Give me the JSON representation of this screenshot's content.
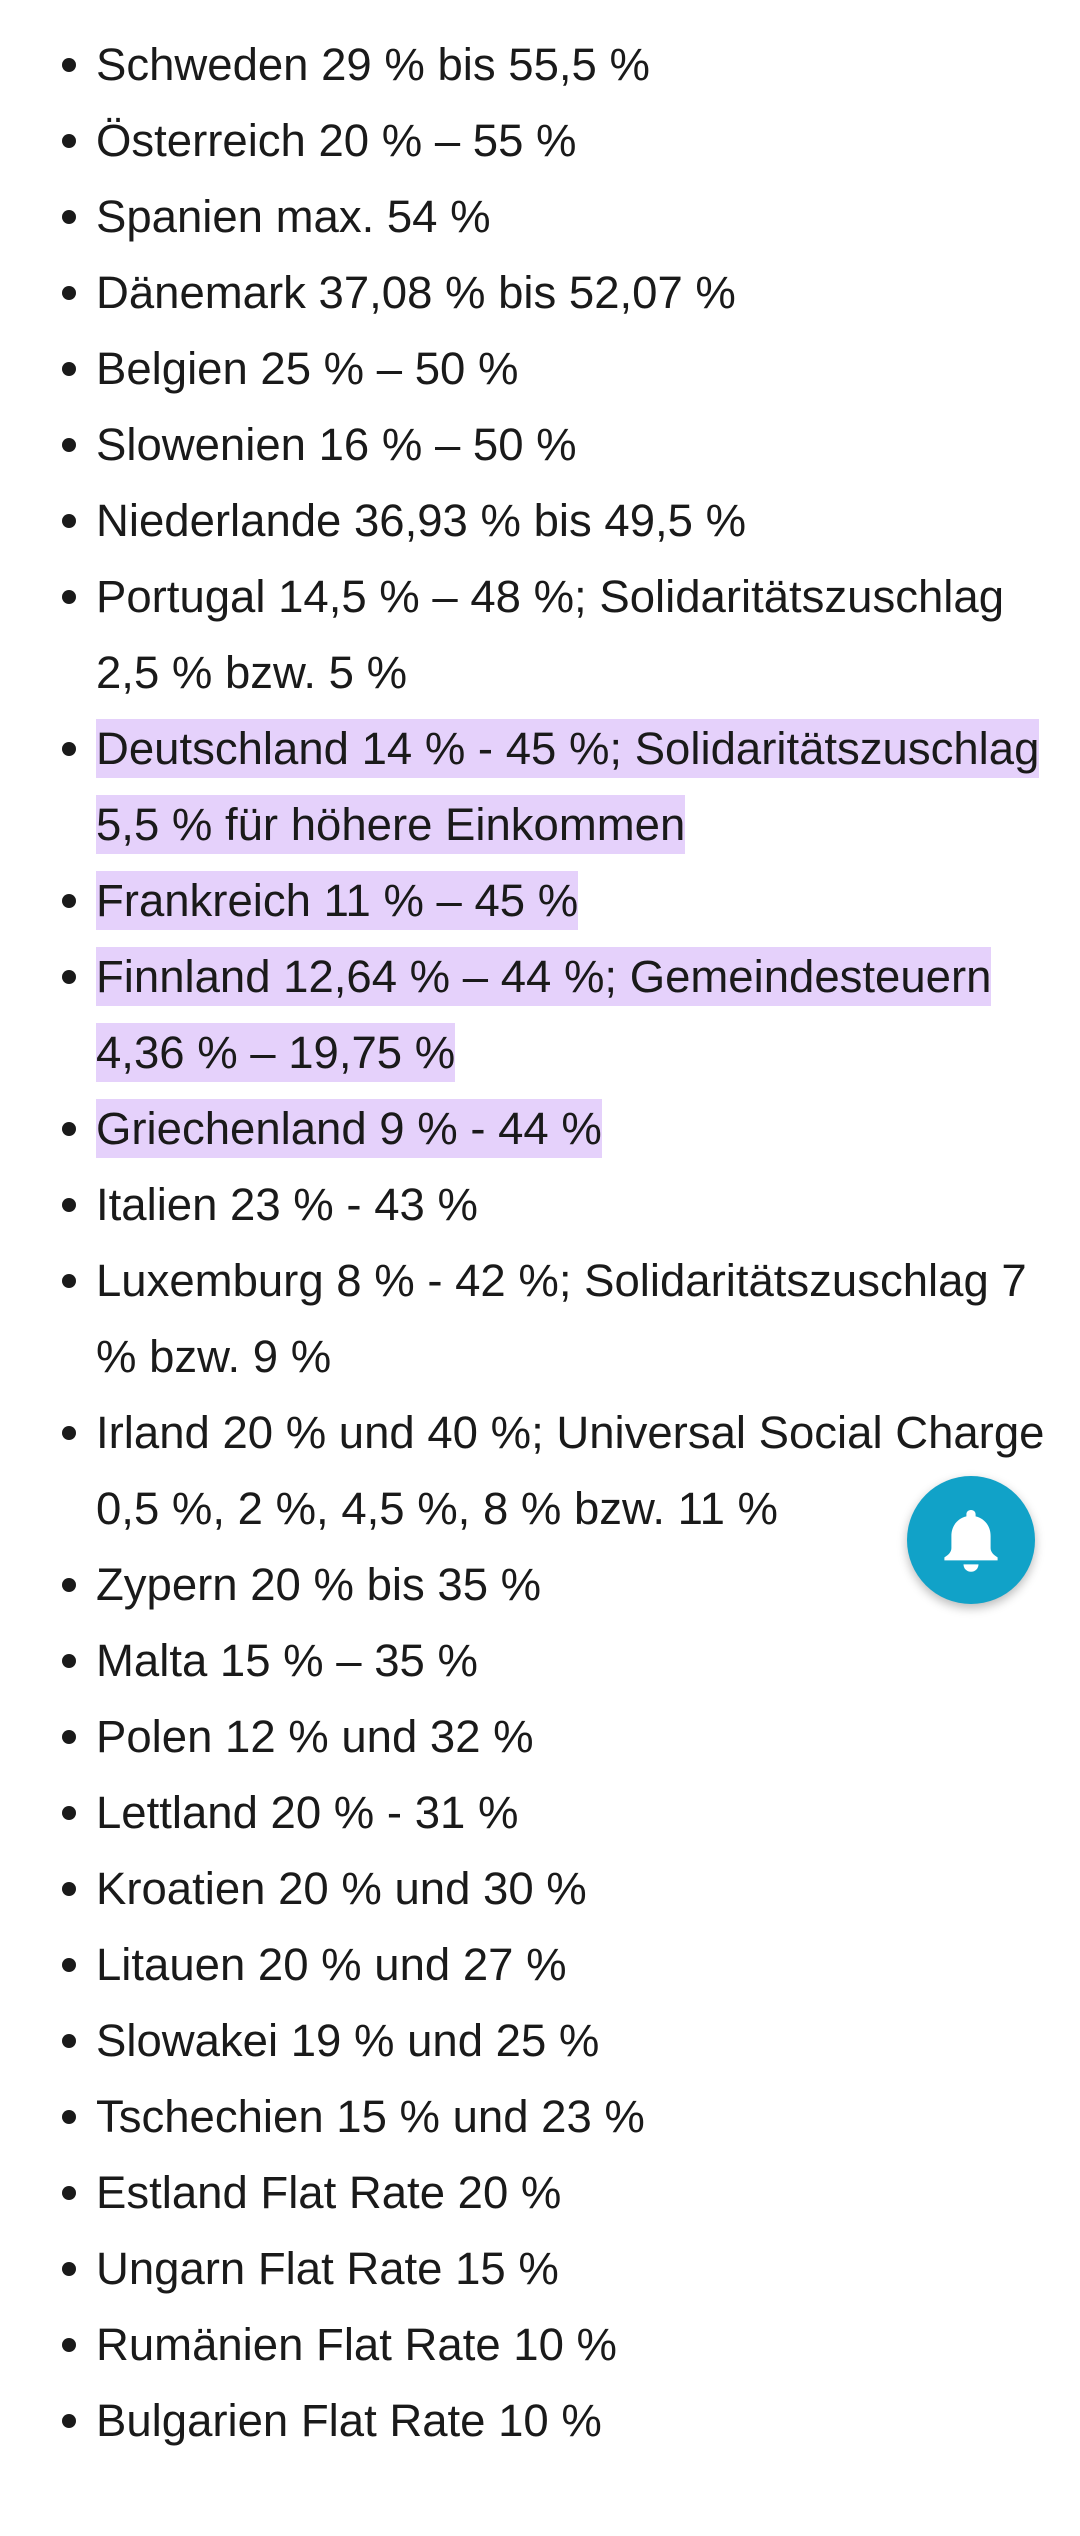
{
  "items": [
    {
      "text": "Schweden 29 % bis 55,5 %",
      "highlighted": false
    },
    {
      "text": "Österreich 20 % – 55 %",
      "highlighted": false
    },
    {
      "text": "Spanien max. 54 %",
      "highlighted": false
    },
    {
      "text": "Dänemark 37,08 % bis 52,07 %",
      "highlighted": false
    },
    {
      "text": "Belgien 25 % – 50 %",
      "highlighted": false
    },
    {
      "text": "Slowenien 16 % – 50 %",
      "highlighted": false
    },
    {
      "text": "Niederlande 36,93 % bis 49,5 %",
      "highlighted": false
    },
    {
      "text": "Portugal 14,5 % – 48 %; Solidaritätszuschlag 2,5 % bzw. 5 %",
      "highlighted": false
    },
    {
      "text": "Deutschland 14 % - 45 %; Solidaritätszuschlag 5,5 % für höhere Einkommen",
      "highlighted": true
    },
    {
      "text": "Frankreich 11 % – 45 %",
      "highlighted": true
    },
    {
      "text": "Finnland 12,64 % – 44 %; Gemeindesteuern 4,36 % – 19,75 %",
      "highlighted": true
    },
    {
      "text": "Griechenland 9 % - 44 %",
      "highlighted": true
    },
    {
      "text": "Italien 23 % - 43 %",
      "highlighted": false
    },
    {
      "text": "Luxemburg 8 % - 42 %; Solidaritätszuschlag 7 % bzw. 9 %",
      "highlighted": false
    },
    {
      "text": "Irland 20 % und 40 %; Universal Social Charge 0,5 %, 2 %, 4,5 %, 8 % bzw. 11 %",
      "highlighted": false
    },
    {
      "text": "Zypern 20 % bis 35 %",
      "highlighted": false
    },
    {
      "text": "Malta 15 % – 35 %",
      "highlighted": false
    },
    {
      "text": "Polen 12 % und 32 %",
      "highlighted": false
    },
    {
      "text": "Lettland 20 % - 31 %",
      "highlighted": false
    },
    {
      "text": "Kroatien 20 % und 30 %",
      "highlighted": false
    },
    {
      "text": "Litauen 20 % und 27 %",
      "highlighted": false
    },
    {
      "text": "Slowakei 19 % und 25 %",
      "highlighted": false
    },
    {
      "text": "Tschechien 15 % und 23 %",
      "highlighted": false
    },
    {
      "text": "Estland Flat Rate 20 %",
      "highlighted": false
    },
    {
      "text": "Ungarn Flat Rate 15 %",
      "highlighted": false
    },
    {
      "text": "Rumänien Flat Rate 10 %",
      "highlighted": false
    },
    {
      "text": "Bulgarien Flat Rate 10 %",
      "highlighted": false
    }
  ],
  "colors": {
    "highlight": "#e5d1fb",
    "fab_background": "#11a2c8",
    "text": "#1a1a1a"
  },
  "fab": {
    "icon": "bell-icon"
  }
}
